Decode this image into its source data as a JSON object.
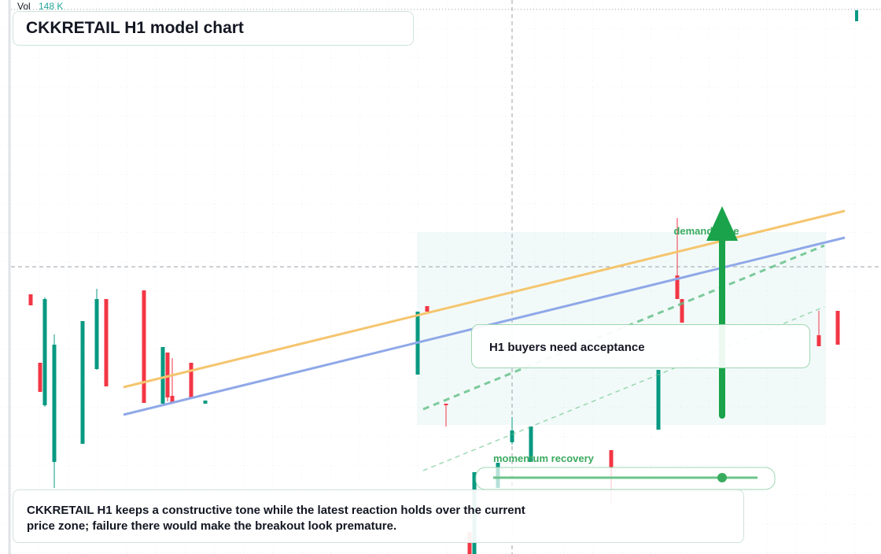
{
  "chart_data": {
    "type": "candlestick",
    "title": "CKKRETAIL H1 model chart",
    "volume_label": "Vol",
    "volume_value": "148 K",
    "annotations": [
      "demand zone",
      "H1 buyers need acceptance",
      "momentum recovery"
    ],
    "caption": "CKKRETAIL H1 keeps a constructive tone while the latest reaction holds over the current price zone; failure there would make the breakout look premature.",
    "up_color": "#089981",
    "down_color": "#f23645",
    "xlim": [
      -4,
      180
    ],
    "ylim": [
      0,
      704
    ],
    "x": [
      0,
      2,
      3,
      5,
      11,
      14,
      16,
      24,
      28,
      29,
      30,
      34,
      37,
      82,
      84,
      88,
      93,
      94,
      99,
      102,
      106,
      123,
      133,
      137,
      138,
      167,
      171
    ],
    "open": [
      330,
      243,
      189,
      117,
      140,
      235,
      324,
      335,
      191,
      256,
      201,
      243,
      191,
      228,
      315,
      191,
      28,
      0,
      84,
      142,
      117,
      132,
      158,
      354,
      324,
      278,
      309
    ],
    "high": [
      330,
      243,
      326,
      279,
      296,
      337,
      324,
      335,
      263,
      256,
      249,
      243,
      195,
      308,
      315,
      191,
      28,
      104,
      116,
      174,
      162,
      132,
      234,
      427,
      324,
      309,
      309
    ],
    "low": [
      316,
      206,
      187,
      84,
      140,
      234,
      213,
      192,
      191,
      194,
      192,
      198,
      191,
      228,
      308,
      162,
      0,
      0,
      84,
      139,
      117,
      64,
      158,
      324,
      294,
      264,
      266
    ],
    "close": [
      316,
      206,
      324,
      266,
      296,
      324,
      213,
      192,
      263,
      199,
      192,
      198,
      195,
      308,
      308,
      189,
      0,
      104,
      116,
      157,
      162,
      110,
      234,
      324,
      294,
      264,
      266
    ]
  }
}
